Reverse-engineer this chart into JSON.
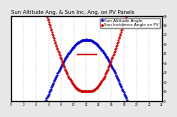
{
  "title": "Sun Altitude Ang. & Sun Inc. Ang. on PV Panels",
  "title_fontsize": 3.8,
  "bg_color": "#e8e8e8",
  "plot_bg_color": "#ffffff",
  "grid_color": "#aaaaaa",
  "xlim": [
    0,
    24
  ],
  "ylim": [
    0,
    90
  ],
  "ylabel_right_values": [
    0,
    10,
    20,
    30,
    40,
    50,
    60,
    70,
    80,
    90
  ],
  "xticks": [
    0,
    2,
    4,
    6,
    8,
    10,
    12,
    14,
    16,
    18,
    20,
    22,
    24
  ],
  "sun_altitude_color": "#0000cc",
  "sun_incidence_color": "#cc0000",
  "legend_alt_label": "Sun Altitude Angle",
  "legend_inc_label": "Sun Incidence Angle on PV",
  "legend_fontsize": 3.0,
  "marker_size": 1.2
}
